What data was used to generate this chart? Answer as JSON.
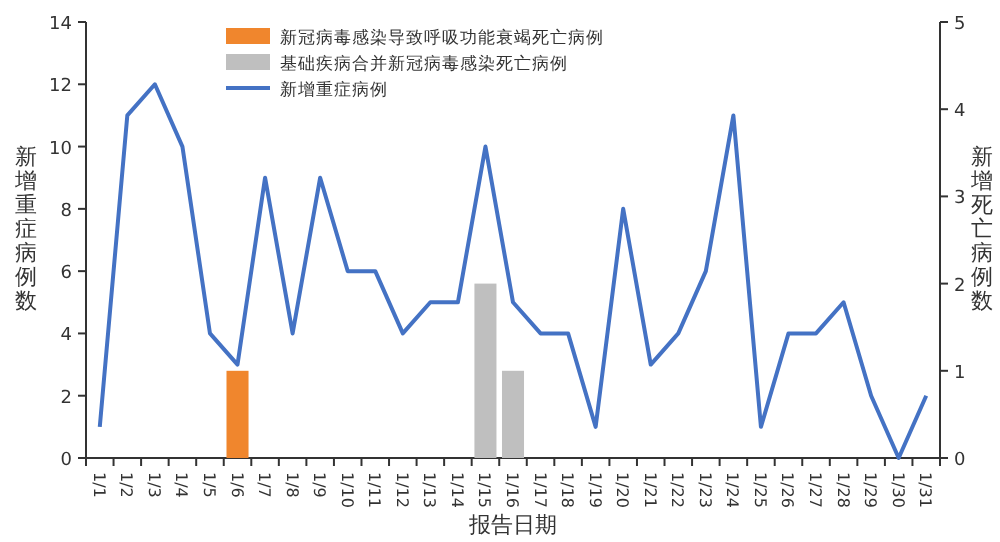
{
  "chart_data": {
    "type": "bar",
    "xlabel": "报告日期",
    "ylabel": "新增重症病例数",
    "y2label": "新增死亡病例数",
    "categories": [
      "1/1",
      "1/2",
      "1/3",
      "1/4",
      "1/5",
      "1/6",
      "1/7",
      "1/8",
      "1/9",
      "1/10",
      "1/11",
      "1/12",
      "1/13",
      "1/14",
      "1/15",
      "1/16",
      "1/17",
      "1/18",
      "1/19",
      "1/20",
      "1/21",
      "1/22",
      "1/23",
      "1/24",
      "1/25",
      "1/26",
      "1/27",
      "1/28",
      "1/29",
      "1/30",
      "1/31"
    ],
    "series": [
      {
        "name": "新冠病毒感染导致呼吸功能衰竭死亡病例",
        "axis": "y2",
        "color": "#f0862d",
        "values": [
          null,
          null,
          null,
          null,
          null,
          1,
          null,
          null,
          null,
          null,
          null,
          null,
          null,
          null,
          null,
          null,
          null,
          null,
          null,
          null,
          null,
          null,
          null,
          null,
          null,
          null,
          null,
          null,
          null,
          null,
          null
        ]
      },
      {
        "name": "基础疾病合并新冠病毒感染死亡病例",
        "axis": "y2",
        "color": "#bfbfbf",
        "values": [
          null,
          null,
          null,
          null,
          null,
          null,
          null,
          null,
          null,
          null,
          null,
          null,
          null,
          null,
          2,
          1,
          null,
          null,
          null,
          null,
          null,
          null,
          null,
          null,
          null,
          null,
          null,
          null,
          null,
          null,
          null
        ]
      },
      {
        "name": "新增重症病例",
        "type": "line",
        "color": "#4472c4",
        "values": [
          1,
          11,
          12,
          10,
          4,
          3,
          9,
          4,
          9,
          6,
          6,
          4,
          5,
          5,
          10,
          5,
          4,
          4,
          1,
          8,
          3,
          4,
          6,
          11,
          1,
          4,
          4,
          5,
          2,
          0,
          2
        ]
      }
    ],
    "ylim": [
      0,
      14
    ],
    "yticks": [
      0,
      2,
      4,
      6,
      8,
      10,
      12,
      14
    ],
    "y2lim": [
      0,
      5
    ],
    "y2ticks": [
      0,
      1,
      2,
      3,
      4,
      5
    ],
    "grid": false,
    "legend": "top",
    "marker": "none",
    "line_style": "solid"
  }
}
